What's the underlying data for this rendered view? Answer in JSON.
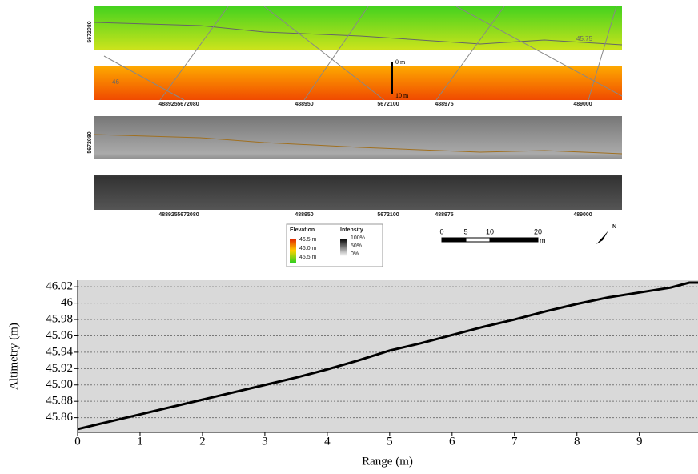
{
  "maps": {
    "panels": [
      {
        "x_labels": [
          "488925",
          "5672080",
          "488950",
          "5672100",
          "488975",
          "489000"
        ],
        "y_label": "5672080",
        "contour_labels": [
          "45.75",
          "46"
        ],
        "scale_labels": [
          "0 m",
          "10 m"
        ]
      },
      {
        "x_labels": [
          "488925",
          "5672080",
          "488950",
          "5672100",
          "488975",
          "489000"
        ],
        "y_label": "5672080"
      }
    ],
    "legend": {
      "elevation_title": "Elevation",
      "elevation_labels": [
        "46.5 m",
        "46.0 m",
        "45.5 m"
      ],
      "intensity_title": "Intensity",
      "intensity_labels": [
        "100%",
        "50%",
        "0%"
      ]
    },
    "scale_bar": {
      "labels": [
        "0",
        "5",
        "10",
        "20"
      ],
      "unit": "m"
    },
    "north": "N"
  },
  "chart_data": {
    "type": "line",
    "x_label": "Range (m)",
    "y_label": "Altimetry (m)",
    "x": [
      0,
      0.5,
      1,
      1.5,
      2,
      2.5,
      3,
      3.5,
      4,
      4.5,
      5,
      5.5,
      6,
      6.5,
      7,
      7.5,
      8,
      8.5,
      9,
      9.5,
      9.8,
      9.94
    ],
    "values": [
      45.846,
      45.855,
      45.864,
      45.873,
      45.882,
      45.891,
      45.9,
      45.909,
      45.919,
      45.93,
      45.942,
      45.951,
      45.961,
      45.971,
      45.98,
      45.99,
      45.999,
      46.007,
      46.013,
      46.019,
      46.025,
      46.025
    ],
    "color": "#000000",
    "xlim": [
      0,
      9.94
    ],
    "ylim": [
      45.842,
      46.028
    ],
    "xticks": [
      0,
      1,
      2,
      3,
      4,
      5,
      6,
      7,
      8,
      9
    ],
    "yticks": [
      45.86,
      45.88,
      {
        "value": 45.9,
        "label": "45.90"
      },
      45.92,
      45.94,
      45.96,
      45.98,
      46,
      46.02
    ],
    "grid": true
  }
}
